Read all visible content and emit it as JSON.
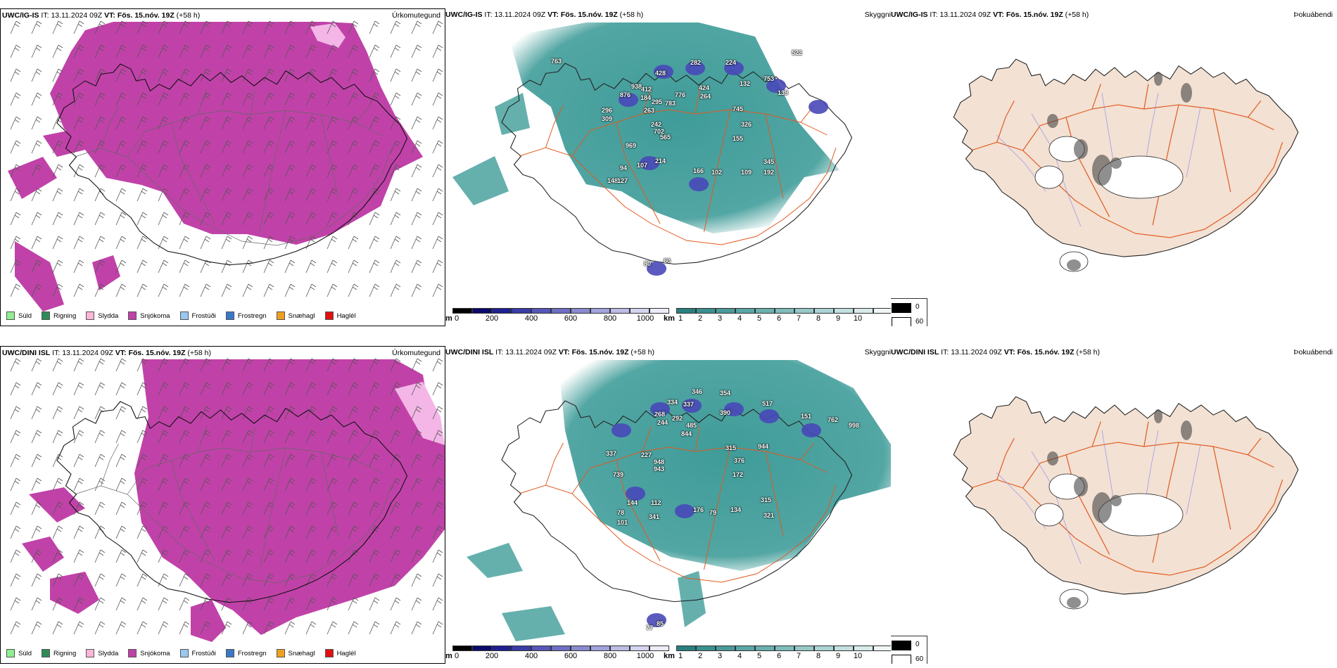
{
  "rows": [
    {
      "model": "UWC/IG-IS",
      "it_label": "IT:",
      "it_value": "13.11.2024 09Z",
      "vt_label": "VT:",
      "vt_value": "Fös. 15.nóv. 19Z",
      "lead": "(+58 h)",
      "peaks": [
        "763",
        "428",
        "282",
        "224",
        "522",
        "938",
        "412",
        "876",
        "184",
        "295",
        "263",
        "783",
        "776",
        "424",
        "264",
        "132",
        "753",
        "139",
        "296",
        "309",
        "242",
        "702",
        "565",
        "745",
        "326",
        "155",
        "969",
        "214",
        "107",
        "94",
        "148",
        "127",
        "166",
        "102",
        "109",
        "345",
        "192",
        "80",
        "60"
      ]
    },
    {
      "model": "UWC/DINI ISL",
      "it_label": "IT:",
      "it_value": "13.11.2024 09Z",
      "vt_label": "VT:",
      "vt_value": "Fös. 15.nóv. 19Z",
      "lead": "(+58 h)",
      "peaks": [
        "346",
        "354",
        "334",
        "337",
        "390",
        "268",
        "292",
        "244",
        "485",
        "844",
        "517",
        "151",
        "762",
        "998",
        "337",
        "227",
        "948",
        "943",
        "315",
        "944",
        "376",
        "172",
        "739",
        "144",
        "112",
        "176",
        "79",
        "134",
        "315",
        "321",
        "78",
        "101",
        "341",
        "77",
        "85"
      ]
    }
  ],
  "panel_titles": {
    "precip": "Úrkomutegund",
    "cloud": "Skyggni",
    "fog": "Þokuábendi"
  },
  "precip_legend": [
    {
      "label": "Súld",
      "color": "#90ee90"
    },
    {
      "label": "Rigning",
      "color": "#2e8b57"
    },
    {
      "label": "Slydda",
      "color": "#ffb6d9"
    },
    {
      "label": "Snjókoma",
      "color": "#c042a8"
    },
    {
      "label": "Frostúði",
      "color": "#9ac8f0"
    },
    {
      "label": "Frostregn",
      "color": "#3a78c8"
    },
    {
      "label": "Snæhagl",
      "color": "#f0a020"
    },
    {
      "label": "Haglél",
      "color": "#e01010"
    }
  ],
  "height_bar": {
    "unit": "m",
    "ticks": [
      "0",
      "200",
      "400",
      "600",
      "800",
      "1000"
    ],
    "colors": [
      "#000000",
      "#0a0a6a",
      "#1e2090",
      "#3a3ca8",
      "#5656b8",
      "#6e6ec4",
      "#8a8ad0",
      "#a2a2dc",
      "#bcbce6",
      "#d4d4f0",
      "#ececfa"
    ]
  },
  "vis_bar": {
    "unit": "km",
    "ticks": [
      "1",
      "2",
      "3",
      "4",
      "5",
      "6",
      "7",
      "8",
      "9",
      "10"
    ],
    "colors": [
      "#2a8080",
      "#3a9090",
      "#4a9a9a",
      "#5aa6a6",
      "#6ab0b0",
      "#80bcbc",
      "#96c8c8",
      "#acd4d4",
      "#c2e0e0",
      "#d8eaea",
      "#f0f6f6"
    ]
  },
  "fog_legend": {
    "high": "0",
    "low": "60",
    "high_color": "#000000",
    "low_color": "#ffffff"
  },
  "colors": {
    "snow": "#c042a8",
    "sleet": "#f3b6e6",
    "teal": "#3f9c99",
    "land": "#f3e1d3",
    "road": "#e05a20"
  }
}
